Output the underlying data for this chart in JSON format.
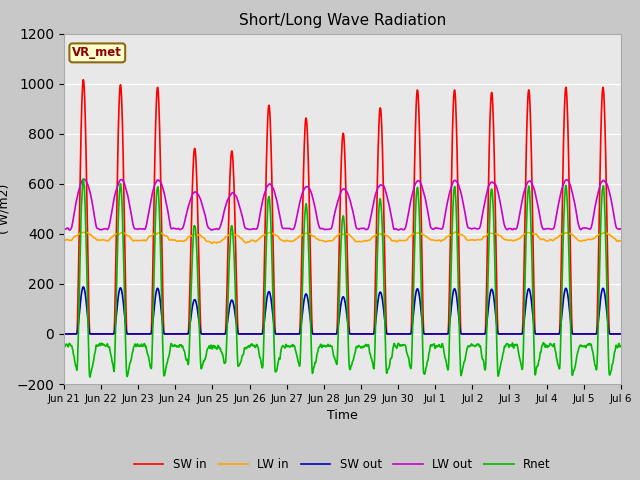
{
  "title": "Short/Long Wave Radiation",
  "xlabel": "Time",
  "ylabel": "( W/m2)",
  "ylim": [
    -200,
    1200
  ],
  "yticks": [
    -200,
    0,
    200,
    400,
    600,
    800,
    1000,
    1200
  ],
  "fig_bg_color": "#c8c8c8",
  "plot_bg_color": "#e8e8e8",
  "annotation_text": "VR_met",
  "annotation_box_color": "#ffffcc",
  "annotation_text_color": "#8b0000",
  "legend_entries": [
    "SW in",
    "LW in",
    "SW out",
    "LW out",
    "Rnet"
  ],
  "line_colors": [
    "#ff0000",
    "#ffa500",
    "#0000bb",
    "#cc00cc",
    "#00bb00"
  ],
  "line_widths": [
    1.2,
    1.2,
    1.2,
    1.2,
    1.2
  ],
  "n_days": 15,
  "dt_hours": 0.25
}
